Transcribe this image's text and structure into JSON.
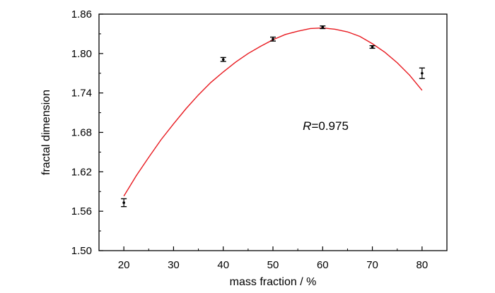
{
  "chart_data": {
    "type": "scatter",
    "xlabel": "mass fraction / %",
    "ylabel": "fractal dimension",
    "xlim": [
      15,
      85
    ],
    "ylim": [
      1.5,
      1.86
    ],
    "xticks": [
      20,
      30,
      40,
      50,
      60,
      70,
      80
    ],
    "yticks": [
      "1.50",
      "1.56",
      "1.62",
      "1.68",
      "1.74",
      "1.80",
      "1.86"
    ],
    "grid": false,
    "series": [
      {
        "type": "scatter",
        "x": [
          20,
          40,
          50,
          60,
          70,
          80
        ],
        "y": [
          1.573,
          1.791,
          1.822,
          1.84,
          1.81,
          1.77
        ],
        "err_low": [
          0.006,
          0.003,
          0.003,
          0.002,
          0.002,
          0.008
        ],
        "err_high": [
          0.006,
          0.003,
          0.003,
          0.002,
          0.002,
          0.008
        ],
        "color": "#000000"
      },
      {
        "type": "line",
        "x": [
          20,
          22.5,
          25,
          27.5,
          30,
          32.5,
          35,
          37.5,
          40,
          42.5,
          45,
          47.5,
          50,
          52.5,
          55,
          57.5,
          60,
          62.5,
          65,
          67.5,
          70,
          72.5,
          75,
          77.5,
          80
        ],
        "y": [
          1.583,
          1.614,
          1.642,
          1.669,
          1.693,
          1.716,
          1.737,
          1.756,
          1.772,
          1.787,
          1.8,
          1.811,
          1.821,
          1.829,
          1.834,
          1.838,
          1.839,
          1.837,
          1.833,
          1.826,
          1.815,
          1.802,
          1.786,
          1.767,
          1.744
        ],
        "color": "#e8191f"
      }
    ],
    "annotations": [
      {
        "text_italic": "R",
        "text": "=0.975",
        "x": 56,
        "y": 1.69
      }
    ]
  }
}
